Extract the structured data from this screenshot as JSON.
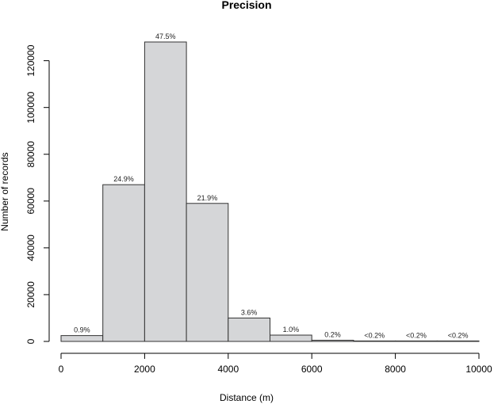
{
  "chart_data": {
    "type": "bar",
    "title": "Precision",
    "xlabel": "Distance (m)",
    "ylabel": "Number of records",
    "bins": [
      [
        0,
        1000
      ],
      [
        1000,
        2000
      ],
      [
        2000,
        3000
      ],
      [
        3000,
        4000
      ],
      [
        4000,
        5000
      ],
      [
        5000,
        6000
      ],
      [
        6000,
        7000
      ],
      [
        7000,
        8000
      ],
      [
        8000,
        9000
      ],
      [
        9000,
        10000
      ]
    ],
    "values": [
      2500,
      67000,
      128000,
      59000,
      10000,
      2700,
      500,
      100,
      60,
      40
    ],
    "labels": [
      "0.9%",
      "24.9%",
      "47.5%",
      "21.9%",
      "3.6%",
      "1.0%",
      "0.2%",
      "<0.2%",
      "<0.2%",
      "<0.2%"
    ],
    "xlim": [
      0,
      10000
    ],
    "ylim": [
      0,
      128000
    ],
    "xticks": [
      0,
      2000,
      4000,
      6000,
      8000,
      10000
    ],
    "yticks": [
      0,
      20000,
      40000,
      60000,
      80000,
      100000,
      120000
    ],
    "grid": false,
    "legend": "none",
    "bar_color": "#d5d6d8",
    "edge_color": "#333333"
  }
}
